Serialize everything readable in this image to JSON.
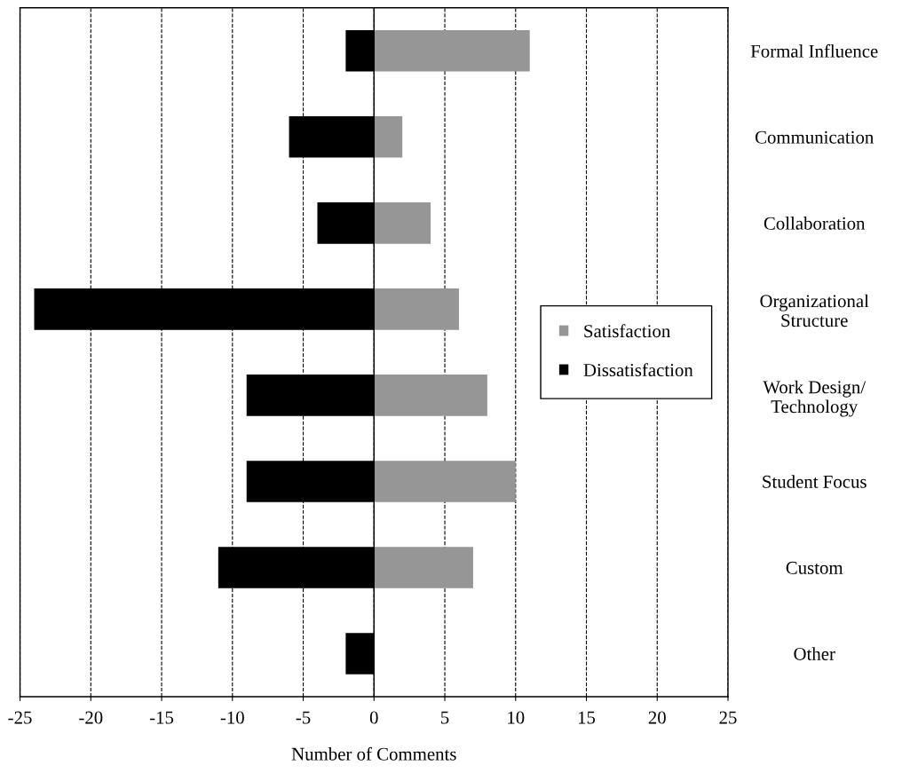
{
  "chart_data": {
    "type": "bar",
    "orientation": "horizontal",
    "xlabel": "Number of Comments",
    "categories": [
      "Formal Influence",
      "Communication",
      "Collaboration",
      "Organizational\nStructure",
      "Work Design/\nTechnology",
      "Student Focus",
      "Custom",
      "Other"
    ],
    "series": [
      {
        "name": "Satisfaction",
        "color": "#969696",
        "values": [
          11,
          2,
          4,
          6,
          8,
          10,
          7,
          0
        ]
      },
      {
        "name": "Dissatisfaction",
        "color": "#000000",
        "values": [
          -2,
          -6,
          -4,
          -24,
          -9,
          -9,
          -11,
          -2
        ]
      }
    ],
    "xlim": [
      -25,
      25
    ],
    "xticks": [
      -25,
      -20,
      -15,
      -10,
      -5,
      0,
      5,
      10,
      15,
      20,
      25
    ],
    "ref_lines": [
      {
        "axis": "x",
        "value": 0,
        "color": "#000000",
        "line_style": "solid"
      }
    ],
    "grid": "x",
    "legend": "right",
    "stacked": true
  }
}
